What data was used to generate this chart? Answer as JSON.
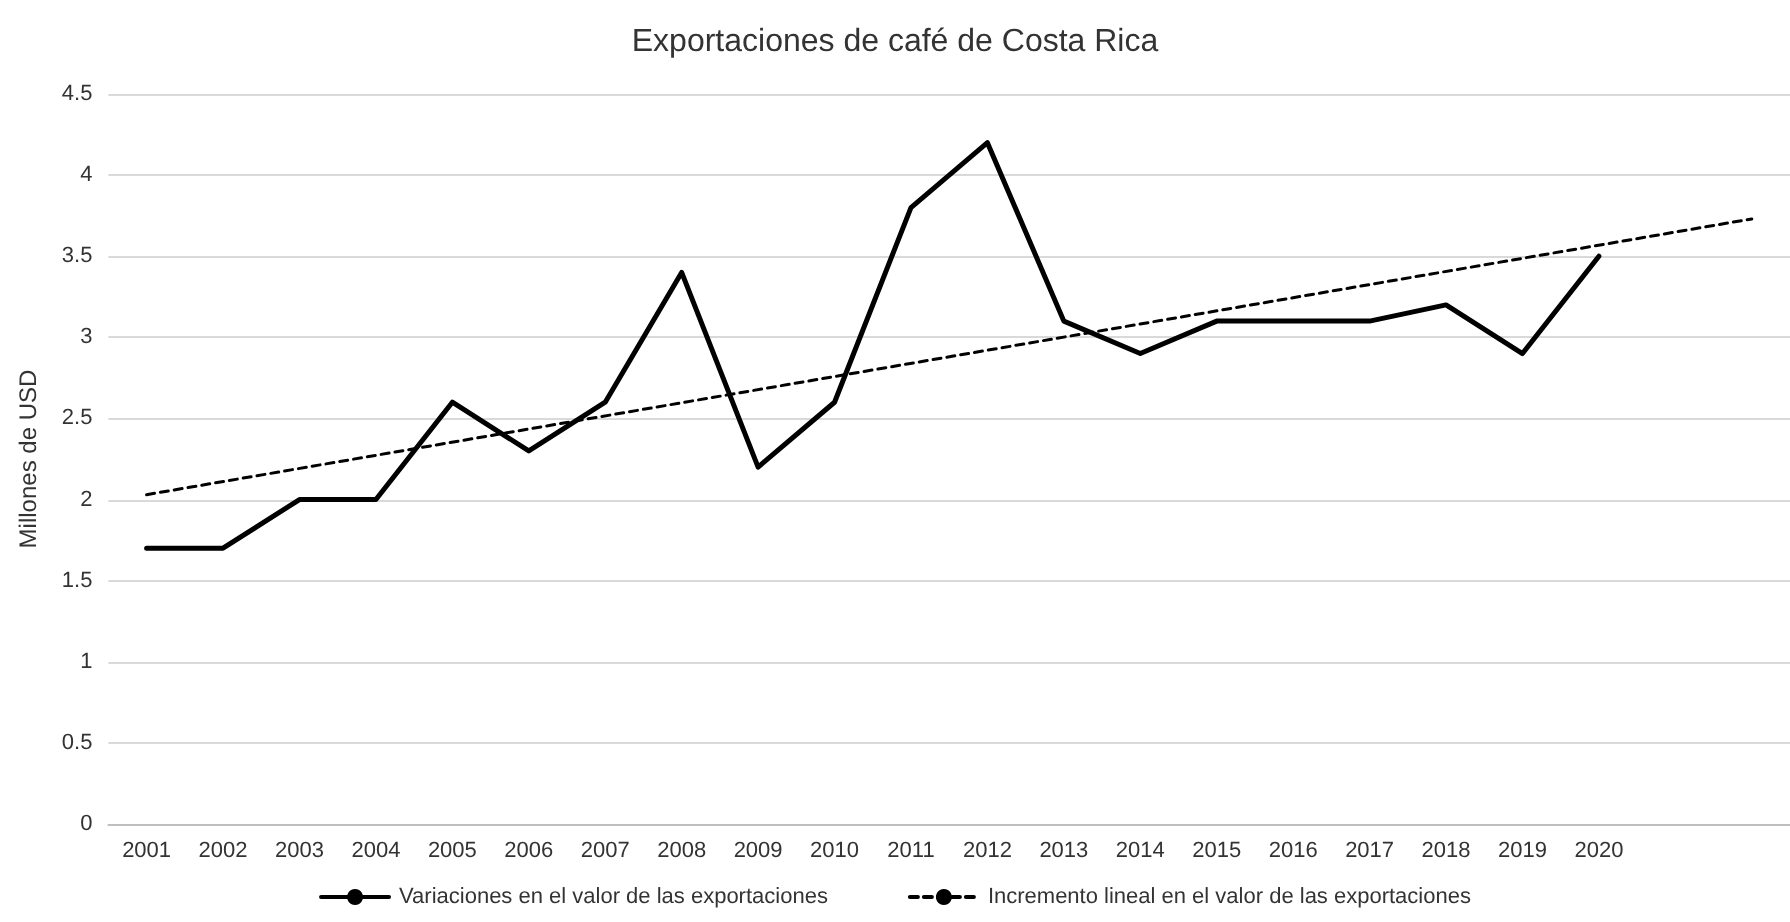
{
  "chart_data": {
    "type": "line",
    "title": "Exportaciones de café de Costa Rica",
    "ylabel": "Millones de USD",
    "categories": [
      "2001",
      "2002",
      "2003",
      "2004",
      "2005",
      "2006",
      "2007",
      "2008",
      "2009",
      "2010",
      "2011",
      "2012",
      "2013",
      "2014",
      "2015",
      "2016",
      "2017",
      "2018",
      "2019",
      "2020",
      null,
      null
    ],
    "series": [
      {
        "name": "Variaciones en el valor de las exportaciones",
        "color": "#000000",
        "line_style": "solid",
        "values": [
          1.7,
          1.7,
          2.0,
          2.0,
          2.6,
          2.3,
          2.6,
          3.4,
          2.2,
          2.6,
          3.8,
          4.2,
          3.1,
          2.9,
          3.1,
          3.1,
          3.1,
          3.2,
          2.9,
          3.5,
          null,
          null
        ]
      },
      {
        "name": "Incremento lineal en el valor de las exportaciones",
        "color": "#000000",
        "line_style": "dashed",
        "values": [
          2.03,
          null,
          null,
          null,
          null,
          null,
          null,
          null,
          null,
          null,
          null,
          null,
          null,
          null,
          null,
          null,
          null,
          null,
          null,
          null,
          null,
          3.73
        ]
      }
    ],
    "ylim": [
      0,
      4.5
    ],
    "yticks": [
      0,
      0.5,
      1,
      1.5,
      2,
      2.5,
      3,
      3.5,
      4,
      4.5
    ],
    "grid": "y",
    "legend": "bottom",
    "marker": "none"
  }
}
